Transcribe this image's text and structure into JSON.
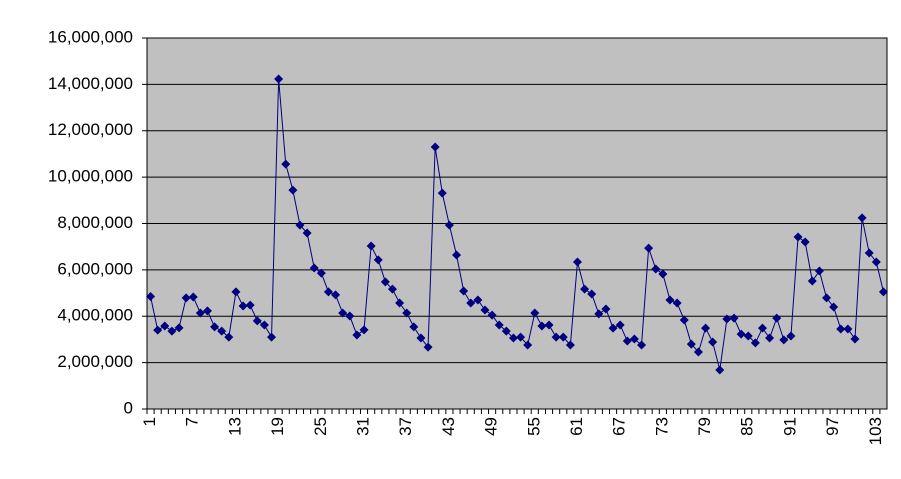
{
  "chart_data": {
    "type": "line",
    "categories": [
      "1",
      null,
      null,
      null,
      null,
      null,
      "7",
      null,
      null,
      null,
      null,
      null,
      "13",
      null,
      null,
      null,
      null,
      null,
      "19",
      null,
      null,
      null,
      null,
      null,
      "25",
      null,
      null,
      null,
      null,
      null,
      "31",
      null,
      null,
      null,
      null,
      null,
      "37",
      null,
      null,
      null,
      null,
      null,
      "43",
      null,
      null,
      null,
      null,
      null,
      "49",
      null,
      null,
      null,
      null,
      null,
      "55",
      null,
      null,
      null,
      null,
      null,
      "61",
      null,
      null,
      null,
      null,
      null,
      "67",
      null,
      null,
      null,
      null,
      null,
      "73",
      null,
      null,
      null,
      null,
      null,
      "79",
      null,
      null,
      null,
      null,
      null,
      "85",
      null,
      null,
      null,
      null,
      null,
      "91",
      null,
      null,
      null,
      null,
      null,
      "97",
      null,
      null,
      null,
      null,
      null,
      "103",
      null
    ],
    "values": [
      4850000,
      3400000,
      3580000,
      3360000,
      3500000,
      4790000,
      4830000,
      4140000,
      4230000,
      3540000,
      3360000,
      3100000,
      5050000,
      4440000,
      4480000,
      3800000,
      3620000,
      3100000,
      14230000,
      10560000,
      9440000,
      7930000,
      7590000,
      6080000,
      5860000,
      5050000,
      4920000,
      4140000,
      4010000,
      3190000,
      3410000,
      7030000,
      6430000,
      5480000,
      5170000,
      4570000,
      4140000,
      3540000,
      3060000,
      2670000,
      11300000,
      9310000,
      7930000,
      6640000,
      5090000,
      4570000,
      4700000,
      4270000,
      4050000,
      3620000,
      3360000,
      3060000,
      3100000,
      2760000,
      4140000,
      3580000,
      3620000,
      3100000,
      3100000,
      2760000,
      6340000,
      5170000,
      4960000,
      4100000,
      4310000,
      3490000,
      3620000,
      2930000,
      3020000,
      2760000,
      6940000,
      6040000,
      5820000,
      4700000,
      4570000,
      3840000,
      2800000,
      2460000,
      3490000,
      2890000,
      1680000,
      3880000,
      3920000,
      3230000,
      3150000,
      2850000,
      3490000,
      3060000,
      3920000,
      2980000,
      3150000,
      7420000,
      7200000,
      5520000,
      5950000,
      4790000,
      4400000,
      3450000,
      3450000,
      3020000,
      8240000,
      6730000,
      6340000,
      5050000
    ],
    "color": "#000080",
    "ylim": [
      0,
      16000000
    ],
    "yticks": [
      0,
      {
        "value": 2000000,
        "label": "2,000,000"
      },
      {
        "value": 4000000,
        "label": "4,000,000"
      },
      {
        "value": 6000000,
        "label": "6,000,000"
      },
      {
        "value": 8000000,
        "label": "8,000,000"
      },
      {
        "value": 10000000,
        "label": "10,000,000"
      },
      {
        "value": 12000000,
        "label": "12,000,000"
      },
      {
        "value": 14000000,
        "label": "14,000,000"
      },
      {
        "value": 16000000,
        "label": "16,000,000"
      }
    ],
    "grid": true
  }
}
